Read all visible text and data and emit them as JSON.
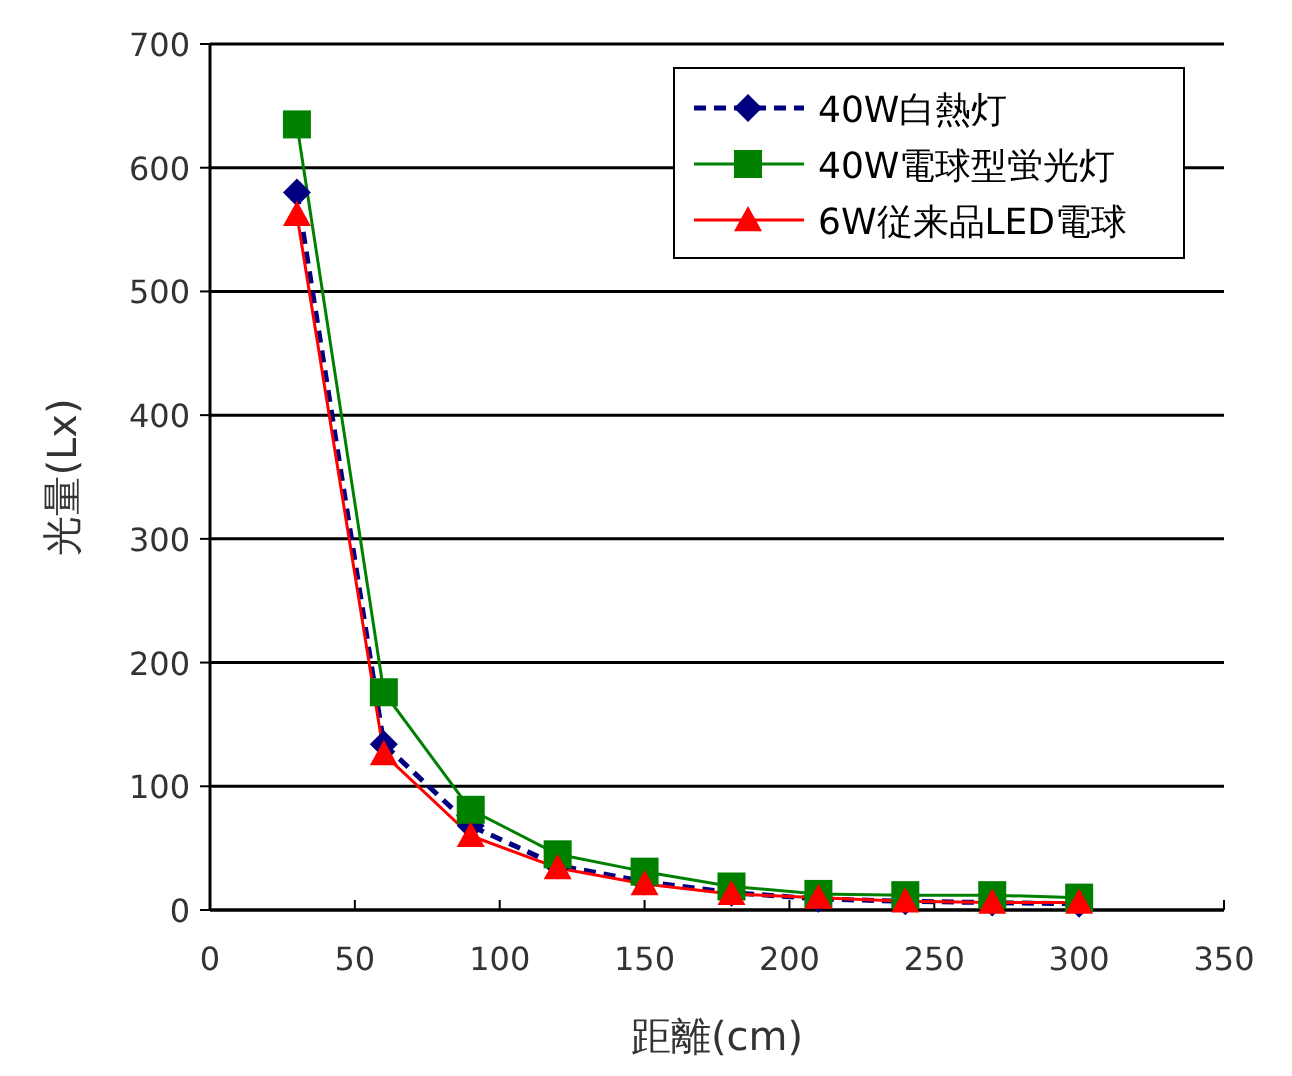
{
  "chart_data": {
    "type": "line",
    "xlabel": "距離(cm)",
    "ylabel": "光量(Lx)",
    "x": [
      30,
      60,
      90,
      120,
      150,
      180,
      210,
      240,
      270,
      300
    ],
    "xlim": [
      0,
      350
    ],
    "xticks": [
      0,
      50,
      100,
      150,
      200,
      250,
      300,
      350
    ],
    "ylim": [
      0,
      700
    ],
    "yticks": [
      0,
      100,
      200,
      300,
      400,
      500,
      600,
      700
    ],
    "grid": "y",
    "legend": "top right",
    "series": [
      {
        "name": "40W白熱灯",
        "color": "#000080",
        "marker": "diamond",
        "line_style": "dashed",
        "values": [
          580,
          134,
          68,
          36,
          23,
          14,
          9,
          7,
          6,
          5
        ]
      },
      {
        "name": "40W電球型蛍光灯",
        "color": "#008000",
        "marker": "square",
        "line_style": "solid",
        "values": [
          635,
          176,
          81,
          45,
          31,
          19,
          13,
          12,
          12,
          10
        ]
      },
      {
        "name": "6W従来品LED電球",
        "color": "#ff0000",
        "marker": "triangle",
        "line_style": "solid",
        "values": [
          562,
          126,
          60,
          34,
          21,
          13,
          10,
          7,
          6,
          6
        ]
      }
    ]
  }
}
